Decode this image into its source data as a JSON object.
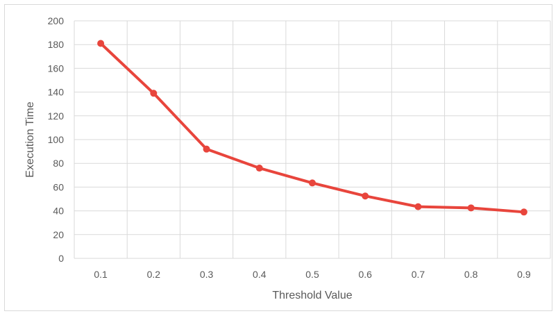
{
  "chart_data": {
    "type": "line",
    "title": "",
    "xlabel": "Threshold Value",
    "ylabel": "Execution Time",
    "categories": [
      "0.1",
      "0.2",
      "0.3",
      "0.4",
      "0.5",
      "0.6",
      "0.7",
      "0.8",
      "0.9"
    ],
    "series": [
      {
        "values": [
          181,
          139,
          92,
          76,
          63.5,
          52.5,
          43.5,
          42.5,
          39
        ],
        "color": "#E8453C"
      }
    ],
    "ylim": [
      0,
      200
    ],
    "yticks": [
      "0",
      "20",
      "40",
      "60",
      "80",
      "100",
      "120",
      "140",
      "160",
      "180",
      "200"
    ],
    "grid": true,
    "legend": "none",
    "colors": {
      "grid": "#d9d9d9",
      "text": "#595959",
      "frame": "#d9d9d9"
    }
  }
}
